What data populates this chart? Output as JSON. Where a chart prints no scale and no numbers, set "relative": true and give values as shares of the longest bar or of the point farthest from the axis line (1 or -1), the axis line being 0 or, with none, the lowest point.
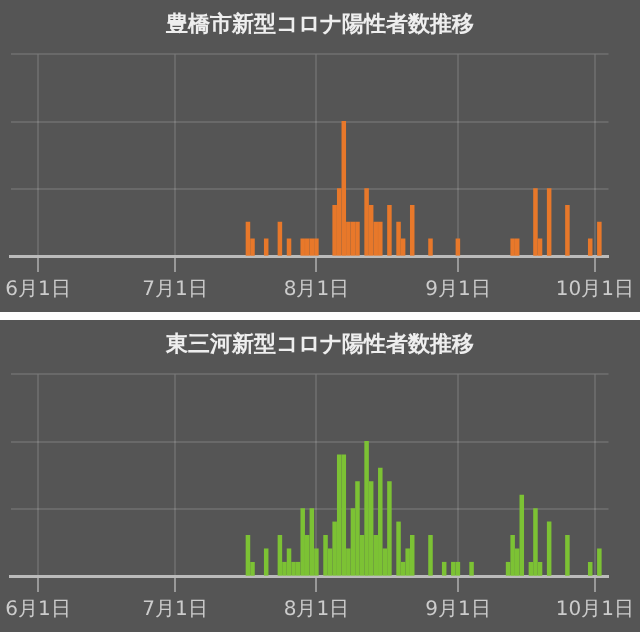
{
  "chart_data": [
    {
      "type": "bar",
      "title": "豊橋市新型コロナ陽性者数推移",
      "color": "#e8782a",
      "relative": true,
      "grid": true,
      "xlim": [
        "--05-26",
        "--10-04"
      ],
      "xticks": [
        {
          "value": "--06-01",
          "label": "6月1日"
        },
        {
          "value": "--07-01",
          "label": "7月1日"
        },
        {
          "value": "--08-01",
          "label": "8月1日"
        },
        {
          "value": "--09-01",
          "label": "9月1日"
        },
        {
          "value": "--10-01",
          "label": "10月1日"
        }
      ],
      "x": [
        "--07-17",
        "--07-18",
        "--07-21",
        "--07-24",
        "--07-26",
        "--07-29",
        "--07-30",
        "--07-31",
        "--08-01",
        "--08-05",
        "--08-06",
        "--08-07",
        "--08-08",
        "--08-09",
        "--08-10",
        "--08-12",
        "--08-13",
        "--08-14",
        "--08-15",
        "--08-17",
        "--08-19",
        "--08-20",
        "--08-22",
        "--08-26",
        "--09-01",
        "--09-13",
        "--09-14",
        "--09-18",
        "--09-19",
        "--09-21",
        "--09-25",
        "--09-30",
        "--10-02"
      ],
      "values": [
        0.25,
        0.125,
        0.125,
        0.25,
        0.125,
        0.125,
        0.125,
        0.125,
        0.125,
        0.375,
        0.5,
        1,
        0.25,
        0.25,
        0.25,
        0.5,
        0.375,
        0.25,
        0.25,
        0.375,
        0.25,
        0.125,
        0.375,
        0.125,
        0.125,
        0.125,
        0.125,
        0.5,
        0.125,
        0.5,
        0.375,
        0.125,
        0.25
      ]
    },
    {
      "type": "bar",
      "title": "東三河新型コロナ陽性者数推移",
      "color": "#7cc234",
      "relative": true,
      "grid": true,
      "xlim": [
        "--05-26",
        "--10-04"
      ],
      "xticks": [
        {
          "value": "--06-01",
          "label": "6月1日"
        },
        {
          "value": "--07-01",
          "label": "7月1日"
        },
        {
          "value": "--08-01",
          "label": "8月1日"
        },
        {
          "value": "--09-01",
          "label": "9月1日"
        },
        {
          "value": "--10-01",
          "label": "10月1日"
        }
      ],
      "x": [
        "--07-17",
        "--07-18",
        "--07-21",
        "--07-24",
        "--07-25",
        "--07-26",
        "--07-27",
        "--07-28",
        "--07-29",
        "--07-30",
        "--07-31",
        "--08-01",
        "--08-03",
        "--08-04",
        "--08-05",
        "--08-06",
        "--08-07",
        "--08-08",
        "--08-09",
        "--08-10",
        "--08-11",
        "--08-12",
        "--08-13",
        "--08-14",
        "--08-15",
        "--08-16",
        "--08-17",
        "--08-19",
        "--08-20",
        "--08-21",
        "--08-22",
        "--08-26",
        "--08-29",
        "--08-31",
        "--09-01",
        "--09-04",
        "--09-12",
        "--09-13",
        "--09-14",
        "--09-15",
        "--09-17",
        "--09-18",
        "--09-19",
        "--09-21",
        "--09-25",
        "--09-30",
        "--10-02"
      ],
      "values": [
        0.3,
        0.1,
        0.2,
        0.3,
        0.1,
        0.2,
        0.1,
        0.1,
        0.5,
        0.3,
        0.5,
        0.2,
        0.3,
        0.2,
        0.4,
        0.9,
        0.9,
        0.2,
        0.5,
        0.7,
        0.3,
        1,
        0.7,
        0.3,
        0.8,
        0.2,
        0.7,
        0.4,
        0.1,
        0.2,
        0.3,
        0.3,
        0.1,
        0.1,
        0.1,
        0.1,
        0.1,
        0.3,
        0.2,
        0.6,
        0.1,
        0.5,
        0.1,
        0.4,
        0.3,
        0.1,
        0.2
      ]
    }
  ]
}
